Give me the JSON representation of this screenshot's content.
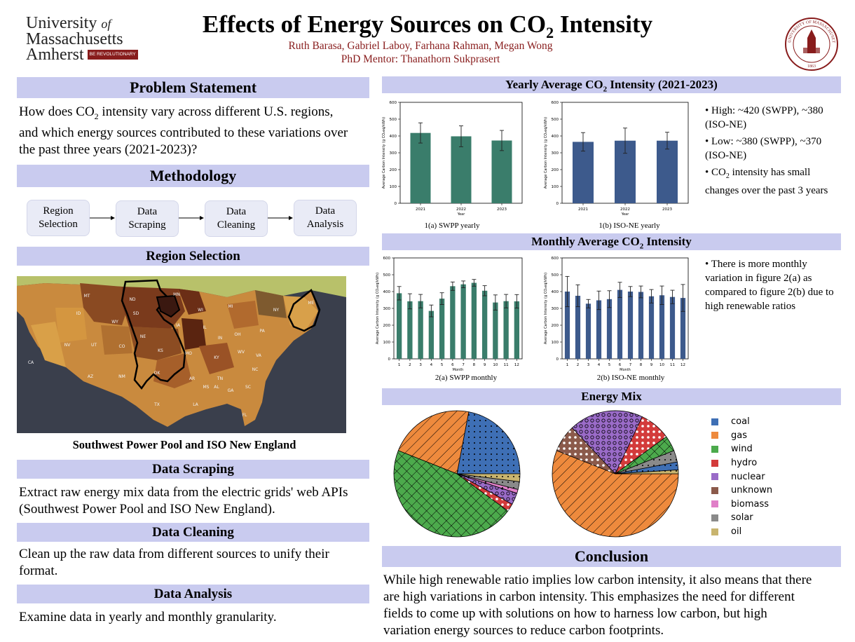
{
  "header": {
    "logo_university": "University",
    "logo_of": "of",
    "logo_massachusetts": "Massachusetts",
    "logo_amherst": "Amherst",
    "logo_tag": "BE REVOLUTIONARY",
    "title_prefix": "Effects of Energy Sources on CO",
    "title_sub": "2",
    "title_suffix": " Intensity",
    "authors": "Ruth Barasa, Gabriel Laboy, Farhana Rahman, Megan Wong",
    "mentor": "PhD Mentor: Thanathorn Sukprasert",
    "seal_text": "UNIVERSITY OF MASSACHUSETTS",
    "seal_year": "1863"
  },
  "left": {
    "problem_title": "Problem Statement",
    "problem_l1_a": "How does CO",
    "problem_l1_sub": "2",
    "problem_l1_b": " intensity vary across different U.S. regions,",
    "problem_l2": "and which energy sources contributed to these variations over",
    "problem_l3": "the past three years (2021-2023)?",
    "method_title": "Methodology",
    "flow": [
      "Region\nSelection",
      "Data\nScraping",
      "Data\nCleaning",
      "Data\nAnalysis"
    ],
    "region_title": "Region Selection",
    "map_caption": "Southwest Power Pool and ISO New England",
    "map_states": [
      "MT",
      "ND",
      "MN",
      "WI",
      "MI",
      "ID",
      "SD",
      "WY",
      "IA",
      "NE",
      "IL",
      "IN",
      "OH",
      "PA",
      "NY",
      "NV",
      "UT",
      "CO",
      "KS",
      "MO",
      "KY",
      "WV",
      "VA",
      "CA",
      "AZ",
      "NM",
      "OK",
      "AR",
      "TN",
      "NC",
      "SC",
      "TX",
      "LA",
      "MS",
      "AL",
      "GA",
      "FL",
      "ME"
    ],
    "scraping_title": "Data Scraping",
    "scraping_l1": "Extract raw energy mix data from the electric grids' web APIs",
    "scraping_l2": "(Southwest Power Pool and ISO New England).",
    "cleaning_title": "Data Cleaning",
    "cleaning_l1": "Clean up the raw data from different sources to unify their",
    "cleaning_l2": "format.",
    "analysis_title": "Data Analysis",
    "analysis_l1": "Examine data in yearly and monthly granularity."
  },
  "right": {
    "yearly_title_a": "Yearly Average CO",
    "yearly_title_sub": "2",
    "yearly_title_b": " Intensity (2021-2023)",
    "yearly_caption_a": "1(a) SWPP yearly",
    "yearly_caption_b": "1(b) ISO-NE yearly",
    "yearly_bullet1": "• High: ~420 (SWPP), ~380 (ISO-NE)",
    "yearly_bullet2": "• Low: ~380 (SWPP), ~370 (ISO-NE)",
    "yearly_bullet3_a": "• CO",
    "yearly_bullet3_sub": "2",
    "yearly_bullet3_b": " intensity has small changes over the past 3 years",
    "monthly_title_a": "Monthly Average CO",
    "monthly_title_sub": "2",
    "monthly_title_b": " Intensity",
    "monthly_caption_a": "2(a)  SWPP monthly",
    "monthly_caption_b": "2(b) ISO-NE monthly",
    "monthly_bullet": "• There is more monthly variation in figure 2(a) as compared to figure 2(b) due to high renewable ratios",
    "mix_title": "Energy Mix",
    "legend": [
      "coal",
      "gas",
      "wind",
      "hydro",
      "nuclear",
      "unknown",
      "biomass",
      "solar",
      "oil"
    ],
    "conclusion_title": "Conclusion",
    "conclusion_l1": "While high renewable ratio implies low carbon intensity, it also means that there",
    "conclusion_l2": "are high variations in carbon intensity. This emphasizes the need for different",
    "conclusion_l3": "fields to come up with solutions on how to harness low carbon, but high",
    "conclusion_l4": "variation energy sources to reduce carbon footprints."
  },
  "colors": {
    "band": "#c9cbef",
    "maroon": "#881c1c",
    "swpp": "#3a7d6b",
    "isone": "#3d5a8c",
    "coal": "#3e6fb5",
    "gas": "#ee8a3d",
    "wind": "#4caa4c",
    "hydro": "#d33b3b",
    "nuclear": "#9a6bc8",
    "unknown": "#8b5a4b",
    "biomass": "#e07fc8",
    "solar": "#8a8a8a",
    "oil": "#c8b46e"
  },
  "chart_data": [
    {
      "id": "1a",
      "type": "bar",
      "categories": [
        "2021",
        "2022",
        "2023"
      ],
      "values": [
        418,
        398,
        373
      ],
      "errors": [
        60,
        62,
        60
      ],
      "xlabel": "Year",
      "ylabel": "Average Carbon Intensity (g CO₂eq/kWh)",
      "ylim": [
        0,
        600
      ],
      "yticks": [
        0,
        100,
        200,
        300,
        400,
        500,
        600
      ]
    },
    {
      "id": "1b",
      "type": "bar",
      "categories": [
        "2021",
        "2022",
        "2023"
      ],
      "values": [
        365,
        372,
        372
      ],
      "errors": [
        55,
        75,
        50
      ],
      "xlabel": "Year",
      "ylabel": "Average Carbon Intensity (g CO₂eq/kWh)",
      "ylim": [
        0,
        600
      ],
      "yticks": [
        0,
        100,
        200,
        300,
        400,
        500,
        600
      ]
    },
    {
      "id": "2a",
      "type": "bar",
      "categories": [
        "1",
        "2",
        "3",
        "4",
        "5",
        "6",
        "7",
        "8",
        "9",
        "10",
        "11",
        "12"
      ],
      "values": [
        390,
        342,
        343,
        285,
        358,
        432,
        443,
        452,
        405,
        335,
        343,
        342
      ],
      "errors": [
        40,
        45,
        40,
        35,
        35,
        25,
        20,
        20,
        30,
        45,
        40,
        40
      ],
      "xlabel": "Month",
      "ylabel": "Average Carbon Intensity (g CO₂eq/kWh)",
      "ylim": [
        0,
        600
      ],
      "yticks": [
        0,
        100,
        200,
        300,
        400,
        500,
        600
      ]
    },
    {
      "id": "2b",
      "type": "bar",
      "categories": [
        "1",
        "2",
        "3",
        "4",
        "5",
        "6",
        "7",
        "8",
        "9",
        "10",
        "11",
        "12"
      ],
      "values": [
        400,
        375,
        328,
        348,
        355,
        410,
        400,
        398,
        372,
        378,
        368,
        362
      ],
      "errors": [
        90,
        65,
        25,
        55,
        50,
        45,
        30,
        35,
        40,
        55,
        40,
        80
      ],
      "xlabel": "Month",
      "ylabel": "Average Carbon Intensity (g CO₂eq/kWh)",
      "ylim": [
        0,
        600
      ],
      "yticks": [
        0,
        100,
        200,
        300,
        400,
        500,
        600
      ]
    },
    {
      "id": "pie-swpp",
      "type": "pie",
      "labels": [
        "coal",
        "gas",
        "wind",
        "hydro",
        "nuclear",
        "biomass",
        "solar",
        "oil"
      ],
      "values": [
        22,
        22,
        46,
        2,
        3,
        1,
        2,
        2
      ]
    },
    {
      "id": "pie-isone",
      "type": "pie",
      "labels": [
        "gas",
        "unknown",
        "nuclear",
        "hydro",
        "wind",
        "solar",
        "coal",
        "oil"
      ],
      "values": [
        56,
        7,
        19,
        8,
        4,
        3,
        2,
        1
      ]
    }
  ]
}
